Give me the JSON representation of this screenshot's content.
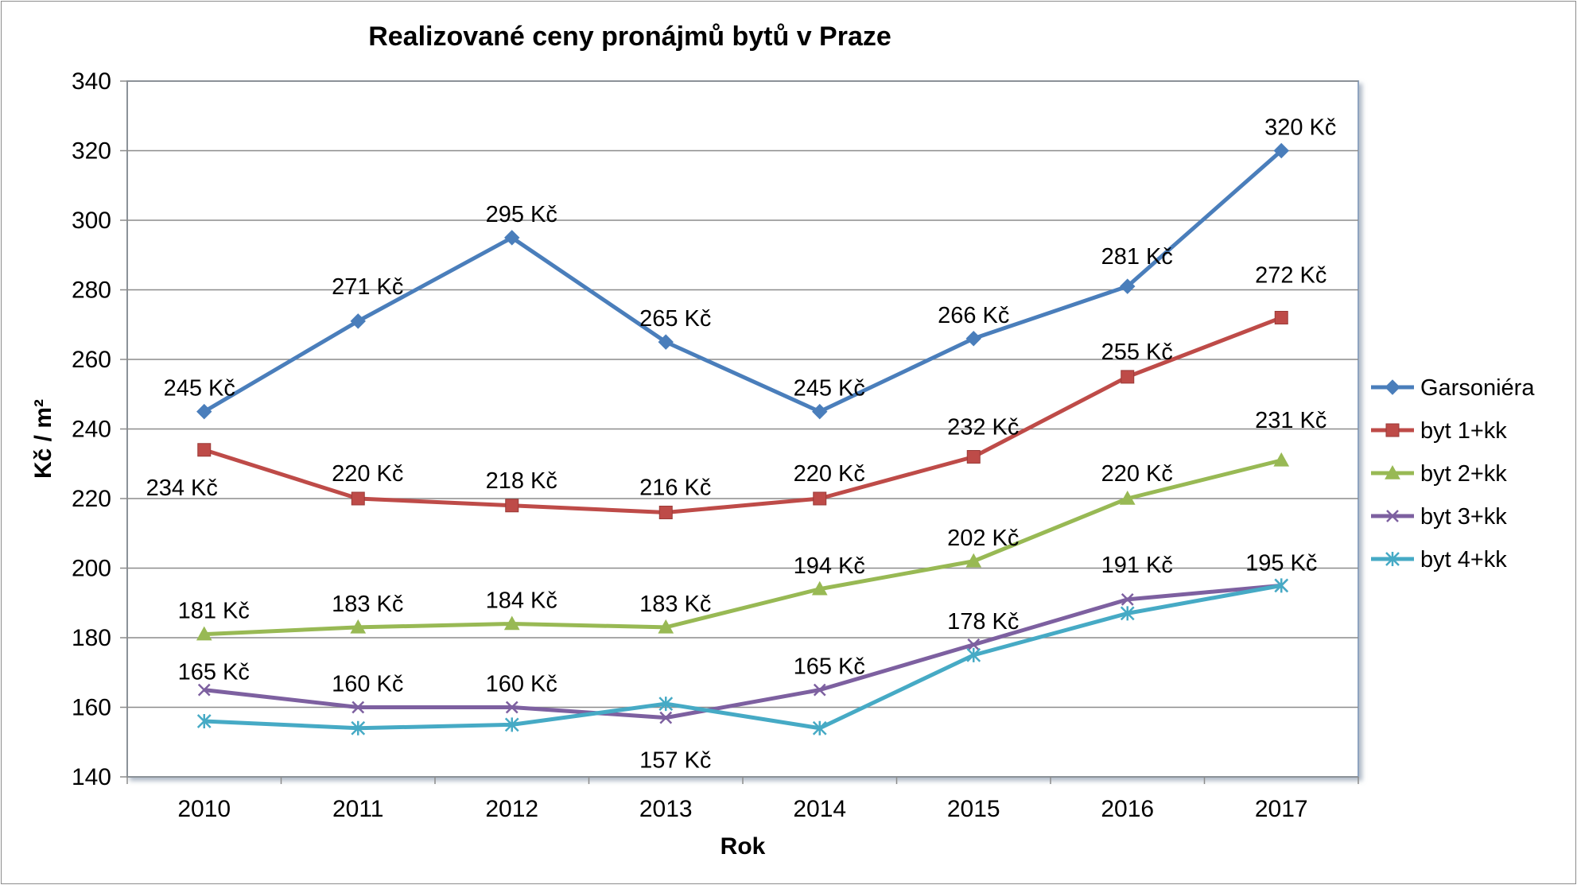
{
  "chart_data": {
    "type": "line",
    "title": "Realizované ceny pronájmů bytů v Praze",
    "xlabel": "Rok",
    "ylabel": "Kč / m²",
    "categories": [
      "2010",
      "2011",
      "2012",
      "2013",
      "2014",
      "2015",
      "2016",
      "2017"
    ],
    "ylim": [
      140,
      340
    ],
    "yticks": [
      "340",
      "320",
      "300",
      "280",
      "260",
      "240",
      "220",
      "200",
      "180",
      "160",
      "140"
    ],
    "grid": true,
    "legend_position": "right",
    "label_suffix": " Kč",
    "series": [
      {
        "name": "Garsoniéra",
        "color": "#4a7ebb",
        "marker": "diamond",
        "values": [
          245,
          271,
          295,
          265,
          245,
          266,
          281,
          320
        ],
        "labels": [
          "245 Kč",
          "271 Kč",
          "295 Kč",
          "265 Kč",
          "245 Kč",
          "266 Kč",
          "281 Kč",
          "320 Kč"
        ]
      },
      {
        "name": "byt 1+kk",
        "color": "#be4b48",
        "marker": "square",
        "values": [
          234,
          220,
          218,
          216,
          220,
          232,
          255,
          272
        ],
        "labels": [
          "234 Kč",
          "220 Kč",
          "218 Kč",
          "216 Kč",
          "220 Kč",
          "232 Kč",
          "255 Kč",
          "272 Kč"
        ]
      },
      {
        "name": "byt 2+kk",
        "color": "#98b954",
        "marker": "triangle",
        "values": [
          181,
          183,
          184,
          183,
          194,
          202,
          220,
          231
        ],
        "labels": [
          "181 Kč",
          "183 Kč",
          "184 Kč",
          "183 Kč",
          "194 Kč",
          "202 Kč",
          "220 Kč",
          "231 Kč"
        ]
      },
      {
        "name": "byt 3+kk",
        "color": "#7d60a0",
        "marker": "x",
        "values": [
          165,
          160,
          160,
          157,
          165,
          178,
          191,
          195
        ],
        "labels": [
          "165 Kč",
          "160 Kč",
          "160 Kč",
          "157 Kč",
          "165 Kč",
          "178 Kč",
          "191 Kč",
          "195 Kč"
        ]
      },
      {
        "name": "byt 4+kk",
        "color": "#46aac5",
        "marker": "star",
        "values": [
          156,
          154,
          155,
          161,
          154,
          175,
          187,
          195
        ],
        "labels": [
          "",
          "",
          "",
          "",
          "",
          "",
          "",
          ""
        ]
      }
    ]
  }
}
